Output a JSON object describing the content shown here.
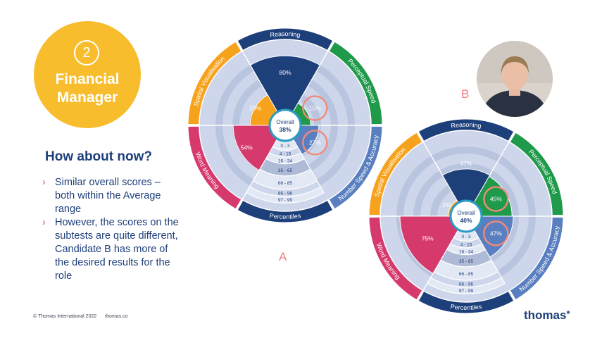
{
  "badge": {
    "number": "2",
    "title_line1": "Financial",
    "title_line2": "Manager"
  },
  "question": "How about now?",
  "bullets": [
    "Similar overall scores – both within the Average range",
    "However, the scores on the subtests are quite different, Candidate B has more of the desired results for the role"
  ],
  "footer": {
    "copyright": "© Thomas International 2022",
    "site": "thomas.co"
  },
  "wheel_labels": {
    "reasoning": "Reasoning",
    "perceptual_speed": "Perceptual Speed",
    "number_speed": "Number Speed & Accuracy",
    "percentiles": "Percentiles",
    "word_meaning": "Word Meaning",
    "spatial": "Spatial Visualisation",
    "overall": "Overall"
  },
  "percentile_bands": [
    "0 - 3",
    "4 - 15",
    "16 - 34",
    "35 - 65",
    "66 - 85",
    "86 - 96",
    "97 - 99"
  ],
  "candidate_a": {
    "label": "A",
    "overall": "38%",
    "scores": {
      "reasoning": "80%",
      "perceptual_speed": "15%",
      "number_speed": "27%",
      "word_meaning": "54%",
      "spatial": "29%"
    },
    "levels": {
      "reasoning": 0.8,
      "perceptual_speed": 0.15,
      "number_speed": 0.27,
      "word_meaning": 0.54,
      "spatial": 0.29
    },
    "highlighted": [
      "perceptual_speed",
      "number_speed"
    ]
  },
  "candidate_b": {
    "label": "B",
    "overall": "40%",
    "scores": {
      "reasoning": "47%",
      "perceptual_speed": "45%",
      "number_speed": "47%",
      "word_meaning": "75%",
      "spatial": "2%"
    },
    "levels": {
      "reasoning": 0.47,
      "perceptual_speed": 0.45,
      "number_speed": 0.47,
      "word_meaning": 0.75,
      "spatial": 0.02
    },
    "highlighted": [
      "perceptual_speed",
      "number_speed"
    ]
  },
  "logo": {
    "text": "thomas",
    "mark": "*"
  },
  "colors": {
    "reasoning": "#1d3f7a",
    "perceptual_speed": "#1f9a4a",
    "number_speed": "#5a7fc0",
    "word_meaning": "#d63a6c",
    "spatial": "#f7a21c",
    "percentiles": "#1d3f7a",
    "ring_light": "#cdd6ea",
    "ring_mid": "#a9b6d4",
    "highlight": "#f08a7a",
    "badge": "#f7bd2c"
  }
}
